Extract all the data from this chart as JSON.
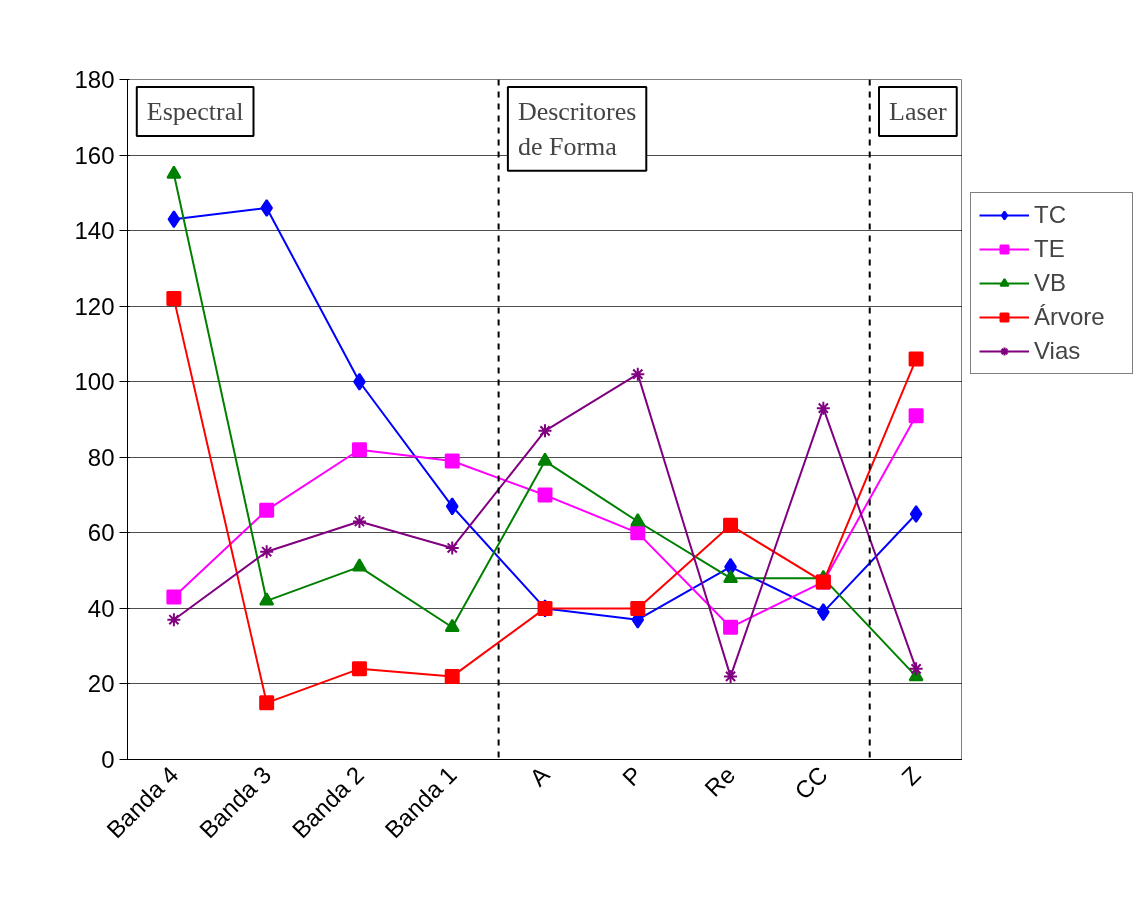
{
  "chart_data": {
    "type": "line",
    "categories": [
      "Banda 4",
      "Banda 3",
      "Banda 2",
      "Banda 1",
      "A",
      "P",
      "Re",
      "CC",
      "Z"
    ],
    "series": [
      {
        "name": "TC",
        "color": "#0000ff",
        "marker": "diamond",
        "values": [
          143,
          146,
          100,
          67,
          40,
          37,
          51,
          39,
          65
        ]
      },
      {
        "name": "TE",
        "color": "#ff00ff",
        "marker": "square",
        "values": [
          43,
          66,
          82,
          79,
          70,
          60,
          35,
          47,
          91
        ]
      },
      {
        "name": "VB",
        "color": "#008000",
        "marker": "triangle",
        "values": [
          155,
          42,
          51,
          35,
          79,
          63,
          48,
          48,
          22
        ]
      },
      {
        "name": "Árvore",
        "color": "#ff0000",
        "marker": "square",
        "values": [
          122,
          15,
          24,
          22,
          40,
          40,
          62,
          47,
          106
        ]
      },
      {
        "name": "Vias",
        "color": "#800080",
        "marker": "cross",
        "values": [
          37,
          55,
          63,
          56,
          87,
          102,
          22,
          93,
          24
        ]
      }
    ],
    "ylim": [
      0,
      180
    ],
    "yticks": [
      0,
      20,
      40,
      60,
      80,
      100,
      120,
      140,
      160,
      180
    ],
    "grid": "y",
    "legend": "right",
    "line_style": "solid",
    "annotations": [
      "Espectral",
      "Descritores\nde Forma",
      "Laser"
    ]
  }
}
